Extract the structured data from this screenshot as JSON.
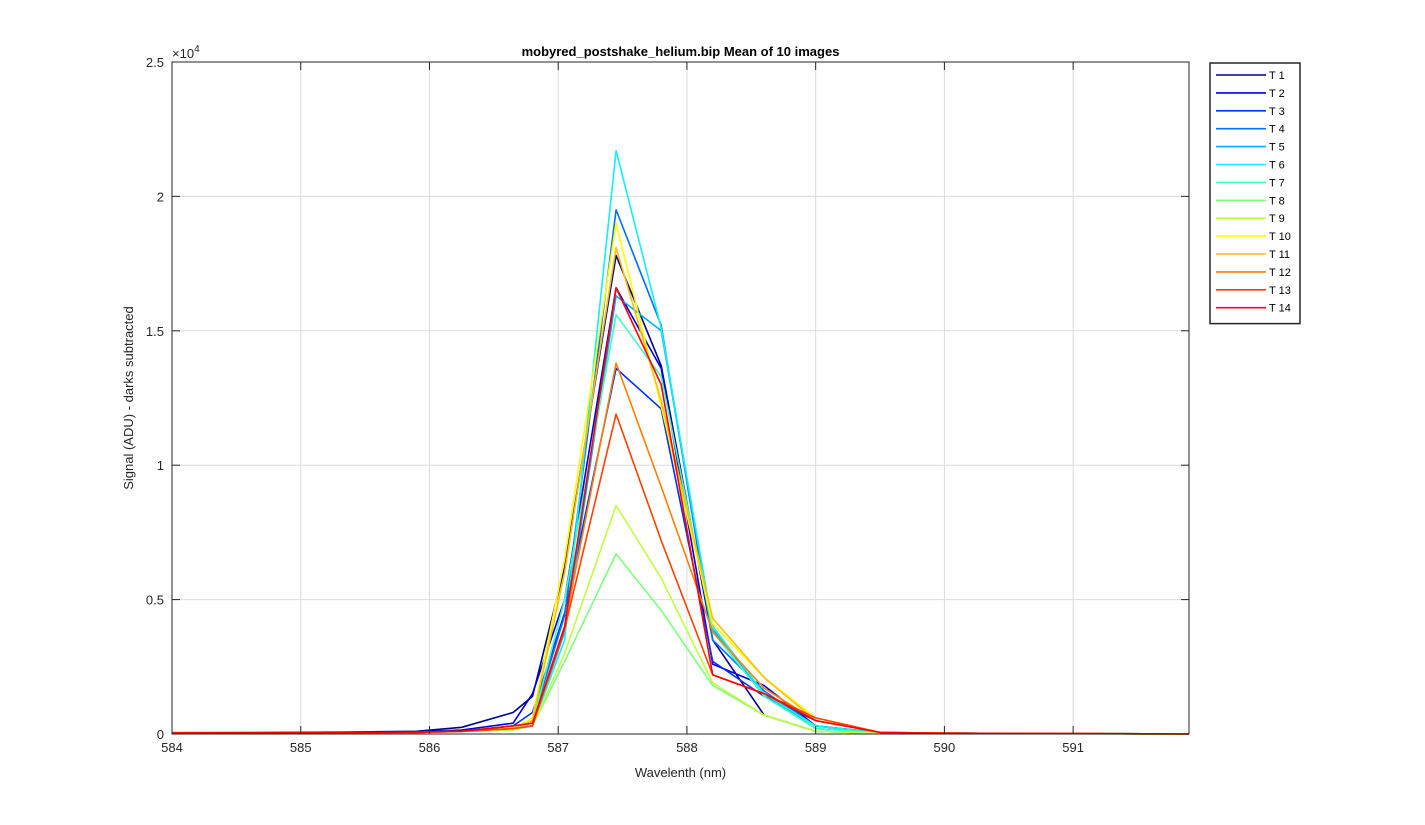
{
  "chart_data": {
    "type": "line",
    "title": "mobyred_postshake_helium.bip  Mean of 10 images",
    "xlabel": "Wavelenth (nm)",
    "ylabel": "Signal (ADU) - darks subtracted",
    "y_exponent_label": "×10",
    "y_exponent_power": "4",
    "xlim": [
      584,
      591.9
    ],
    "ylim": [
      0,
      25000
    ],
    "x_ticks": [
      584,
      585,
      586,
      587,
      588,
      589,
      590,
      591
    ],
    "y_ticks": [
      0,
      5000,
      10000,
      15000,
      20000,
      25000
    ],
    "x_tick_labels": [
      "584",
      "585",
      "586",
      "587",
      "588",
      "589",
      "590",
      "591"
    ],
    "y_tick_labels": [
      "0",
      "0.5",
      "1",
      "1.5",
      "2",
      "2.5"
    ],
    "grid": true,
    "legend_position": "outside-right-top",
    "x": [
      584.0,
      585.0,
      585.9,
      586.25,
      586.65,
      586.8,
      587.05,
      587.45,
      587.8,
      588.2,
      588.6,
      589.0,
      589.5,
      590.0,
      591.0,
      591.9
    ],
    "series": [
      {
        "name": "T 1",
        "color": "#00008f",
        "values": [
          50,
          60,
          100,
          250,
          800,
          1400,
          6200,
          17800,
          13700,
          3500,
          700,
          100,
          30,
          20,
          10,
          0
        ]
      },
      {
        "name": "T 2",
        "color": "#0000df",
        "values": [
          40,
          50,
          80,
          150,
          400,
          1500,
          5000,
          16600,
          13600,
          2600,
          1800,
          300,
          50,
          30,
          20,
          0
        ]
      },
      {
        "name": "T 3",
        "color": "#0030ff",
        "values": [
          30,
          40,
          60,
          100,
          300,
          800,
          4500,
          13600,
          12100,
          2700,
          1400,
          500,
          60,
          30,
          20,
          0
        ]
      },
      {
        "name": "T 4",
        "color": "#0070ff",
        "values": [
          30,
          40,
          60,
          100,
          200,
          500,
          4400,
          19500,
          15200,
          3500,
          1600,
          300,
          50,
          30,
          20,
          0
        ]
      },
      {
        "name": "T 5",
        "color": "#00b0ff",
        "values": [
          30,
          40,
          60,
          100,
          200,
          300,
          3800,
          16300,
          15000,
          3900,
          1500,
          200,
          40,
          30,
          20,
          0
        ]
      },
      {
        "name": "T 6",
        "color": "#10f0ff",
        "values": [
          30,
          40,
          60,
          100,
          150,
          300,
          3500,
          21700,
          15100,
          4000,
          1500,
          300,
          40,
          30,
          20,
          0
        ]
      },
      {
        "name": "T 7",
        "color": "#40ffbf",
        "values": [
          30,
          40,
          60,
          100,
          150,
          400,
          5000,
          15600,
          13300,
          3800,
          1400,
          200,
          40,
          30,
          20,
          0
        ]
      },
      {
        "name": "T 8",
        "color": "#80ff80",
        "values": [
          30,
          40,
          60,
          100,
          150,
          300,
          2700,
          6700,
          4600,
          1800,
          700,
          100,
          30,
          20,
          10,
          0
        ]
      },
      {
        "name": "T 9",
        "color": "#bfff40",
        "values": [
          30,
          40,
          60,
          100,
          150,
          300,
          3000,
          8500,
          5800,
          1900,
          700,
          100,
          30,
          20,
          10,
          0
        ]
      },
      {
        "name": "T 10",
        "color": "#ffff00",
        "values": [
          30,
          40,
          60,
          100,
          200,
          600,
          6500,
          19000,
          12200,
          4100,
          2100,
          600,
          60,
          30,
          20,
          0
        ]
      },
      {
        "name": "T 11",
        "color": "#ffbf00",
        "values": [
          30,
          40,
          60,
          100,
          200,
          500,
          6000,
          18100,
          12400,
          4300,
          2100,
          500,
          60,
          30,
          20,
          0
        ]
      },
      {
        "name": "T 12",
        "color": "#ff8000",
        "values": [
          30,
          40,
          60,
          100,
          200,
          300,
          4000,
          13800,
          9200,
          3800,
          1700,
          500,
          60,
          30,
          20,
          0
        ]
      },
      {
        "name": "T 13",
        "color": "#ff4000",
        "values": [
          30,
          40,
          60,
          100,
          200,
          300,
          3900,
          11900,
          7200,
          2200,
          1500,
          600,
          60,
          30,
          20,
          0
        ]
      },
      {
        "name": "T 14",
        "color": "#ff0000",
        "values": [
          40,
          50,
          70,
          100,
          300,
          400,
          4000,
          16600,
          13000,
          2200,
          1500,
          500,
          60,
          30,
          20,
          0
        ]
      }
    ]
  }
}
